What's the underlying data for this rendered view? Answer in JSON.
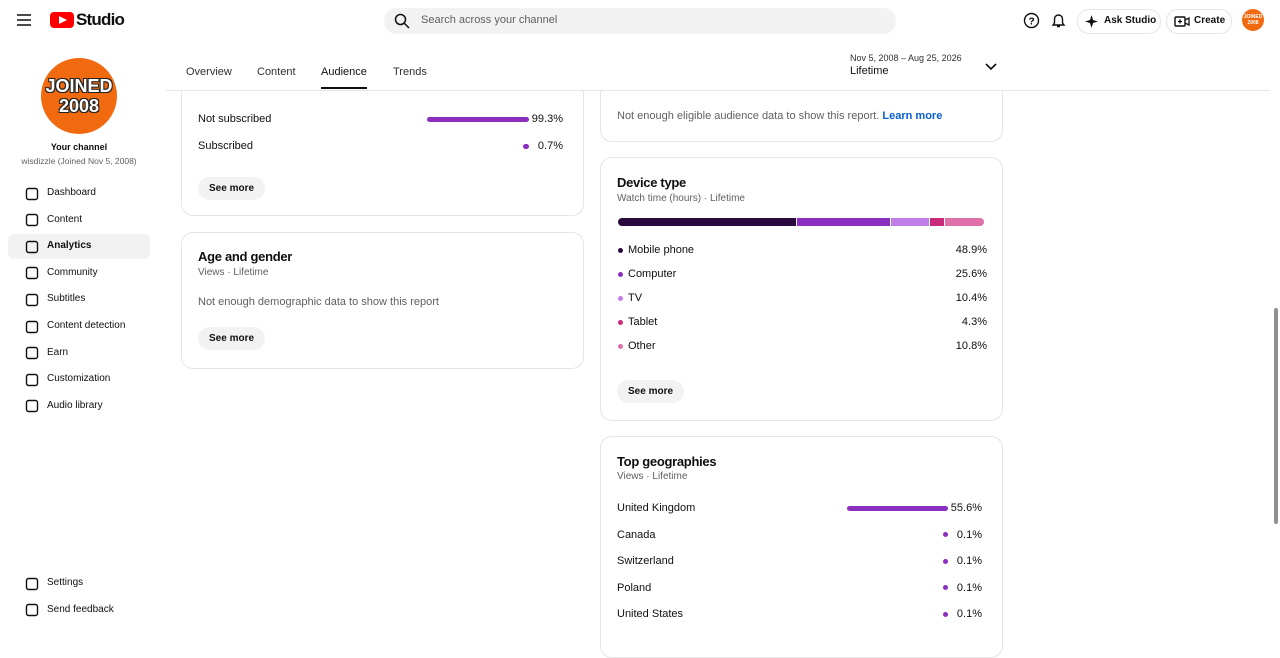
{
  "header": {
    "logo": "Studio",
    "search_placeholder": "Search across your channel",
    "ask": "Ask Studio",
    "create": "Create"
  },
  "sidebar": {
    "avatar_lines": [
      "JOINED",
      "2008"
    ],
    "channel_title": "Your channel",
    "channel_name": "wisdizzle (Joined Nov 5, 2008)",
    "nav": [
      "Dashboard",
      "Content",
      "Analytics",
      "Community",
      "Subtitles",
      "Content detection",
      "Earn",
      "Customization",
      "Audio library"
    ],
    "active": 2,
    "bottom": [
      "Settings",
      "Send feedback"
    ]
  },
  "tabs": {
    "items": [
      "Overview",
      "Content",
      "Audience",
      "Trends"
    ],
    "active": 2
  },
  "date_range": {
    "range": "Nov 5, 2008 – Aug 25, 2026",
    "label": "Lifetime"
  },
  "subscription": {
    "rows": [
      {
        "name": "Not subscribed",
        "value": 99.3,
        "label": "99.3%"
      },
      {
        "name": "Subscribed",
        "value": 0.7,
        "label": "0.7%"
      }
    ],
    "see_more": "See more"
  },
  "age_gender": {
    "title": "Age and gender",
    "subtitle": "Views · Lifetime",
    "message": "Not enough demographic data to show this report",
    "see_more": "See more"
  },
  "eligible": {
    "message": "Not enough eligible audience data to show this report.",
    "link": "Learn more"
  },
  "device": {
    "title": "Device type",
    "subtitle": "Watch time (hours) · Lifetime",
    "see_more": "See more",
    "rows": [
      {
        "name": "Mobile phone",
        "value": 48.9,
        "label": "48.9%",
        "color": "#2a0a3e"
      },
      {
        "name": "Computer",
        "value": 25.6,
        "label": "25.6%",
        "color": "#8a2fc0"
      },
      {
        "name": "TV",
        "value": 10.4,
        "label": "10.4%",
        "color": "#c27ee8"
      },
      {
        "name": "Tablet",
        "value": 4.3,
        "label": "4.3%",
        "color": "#c92a7a"
      },
      {
        "name": "Other",
        "value": 10.8,
        "label": "10.8%",
        "color": "#e070a8"
      }
    ]
  },
  "geo": {
    "title": "Top geographies",
    "subtitle": "Views · Lifetime",
    "rows": [
      {
        "name": "United Kingdom",
        "value": 55.6,
        "label": "55.6%"
      },
      {
        "name": "Canada",
        "value": 0.1,
        "label": "0.1%"
      },
      {
        "name": "Switzerland",
        "value": 0.1,
        "label": "0.1%"
      },
      {
        "name": "Poland",
        "value": 0.1,
        "label": "0.1%"
      },
      {
        "name": "United States",
        "value": 0.1,
        "label": "0.1%"
      }
    ]
  }
}
